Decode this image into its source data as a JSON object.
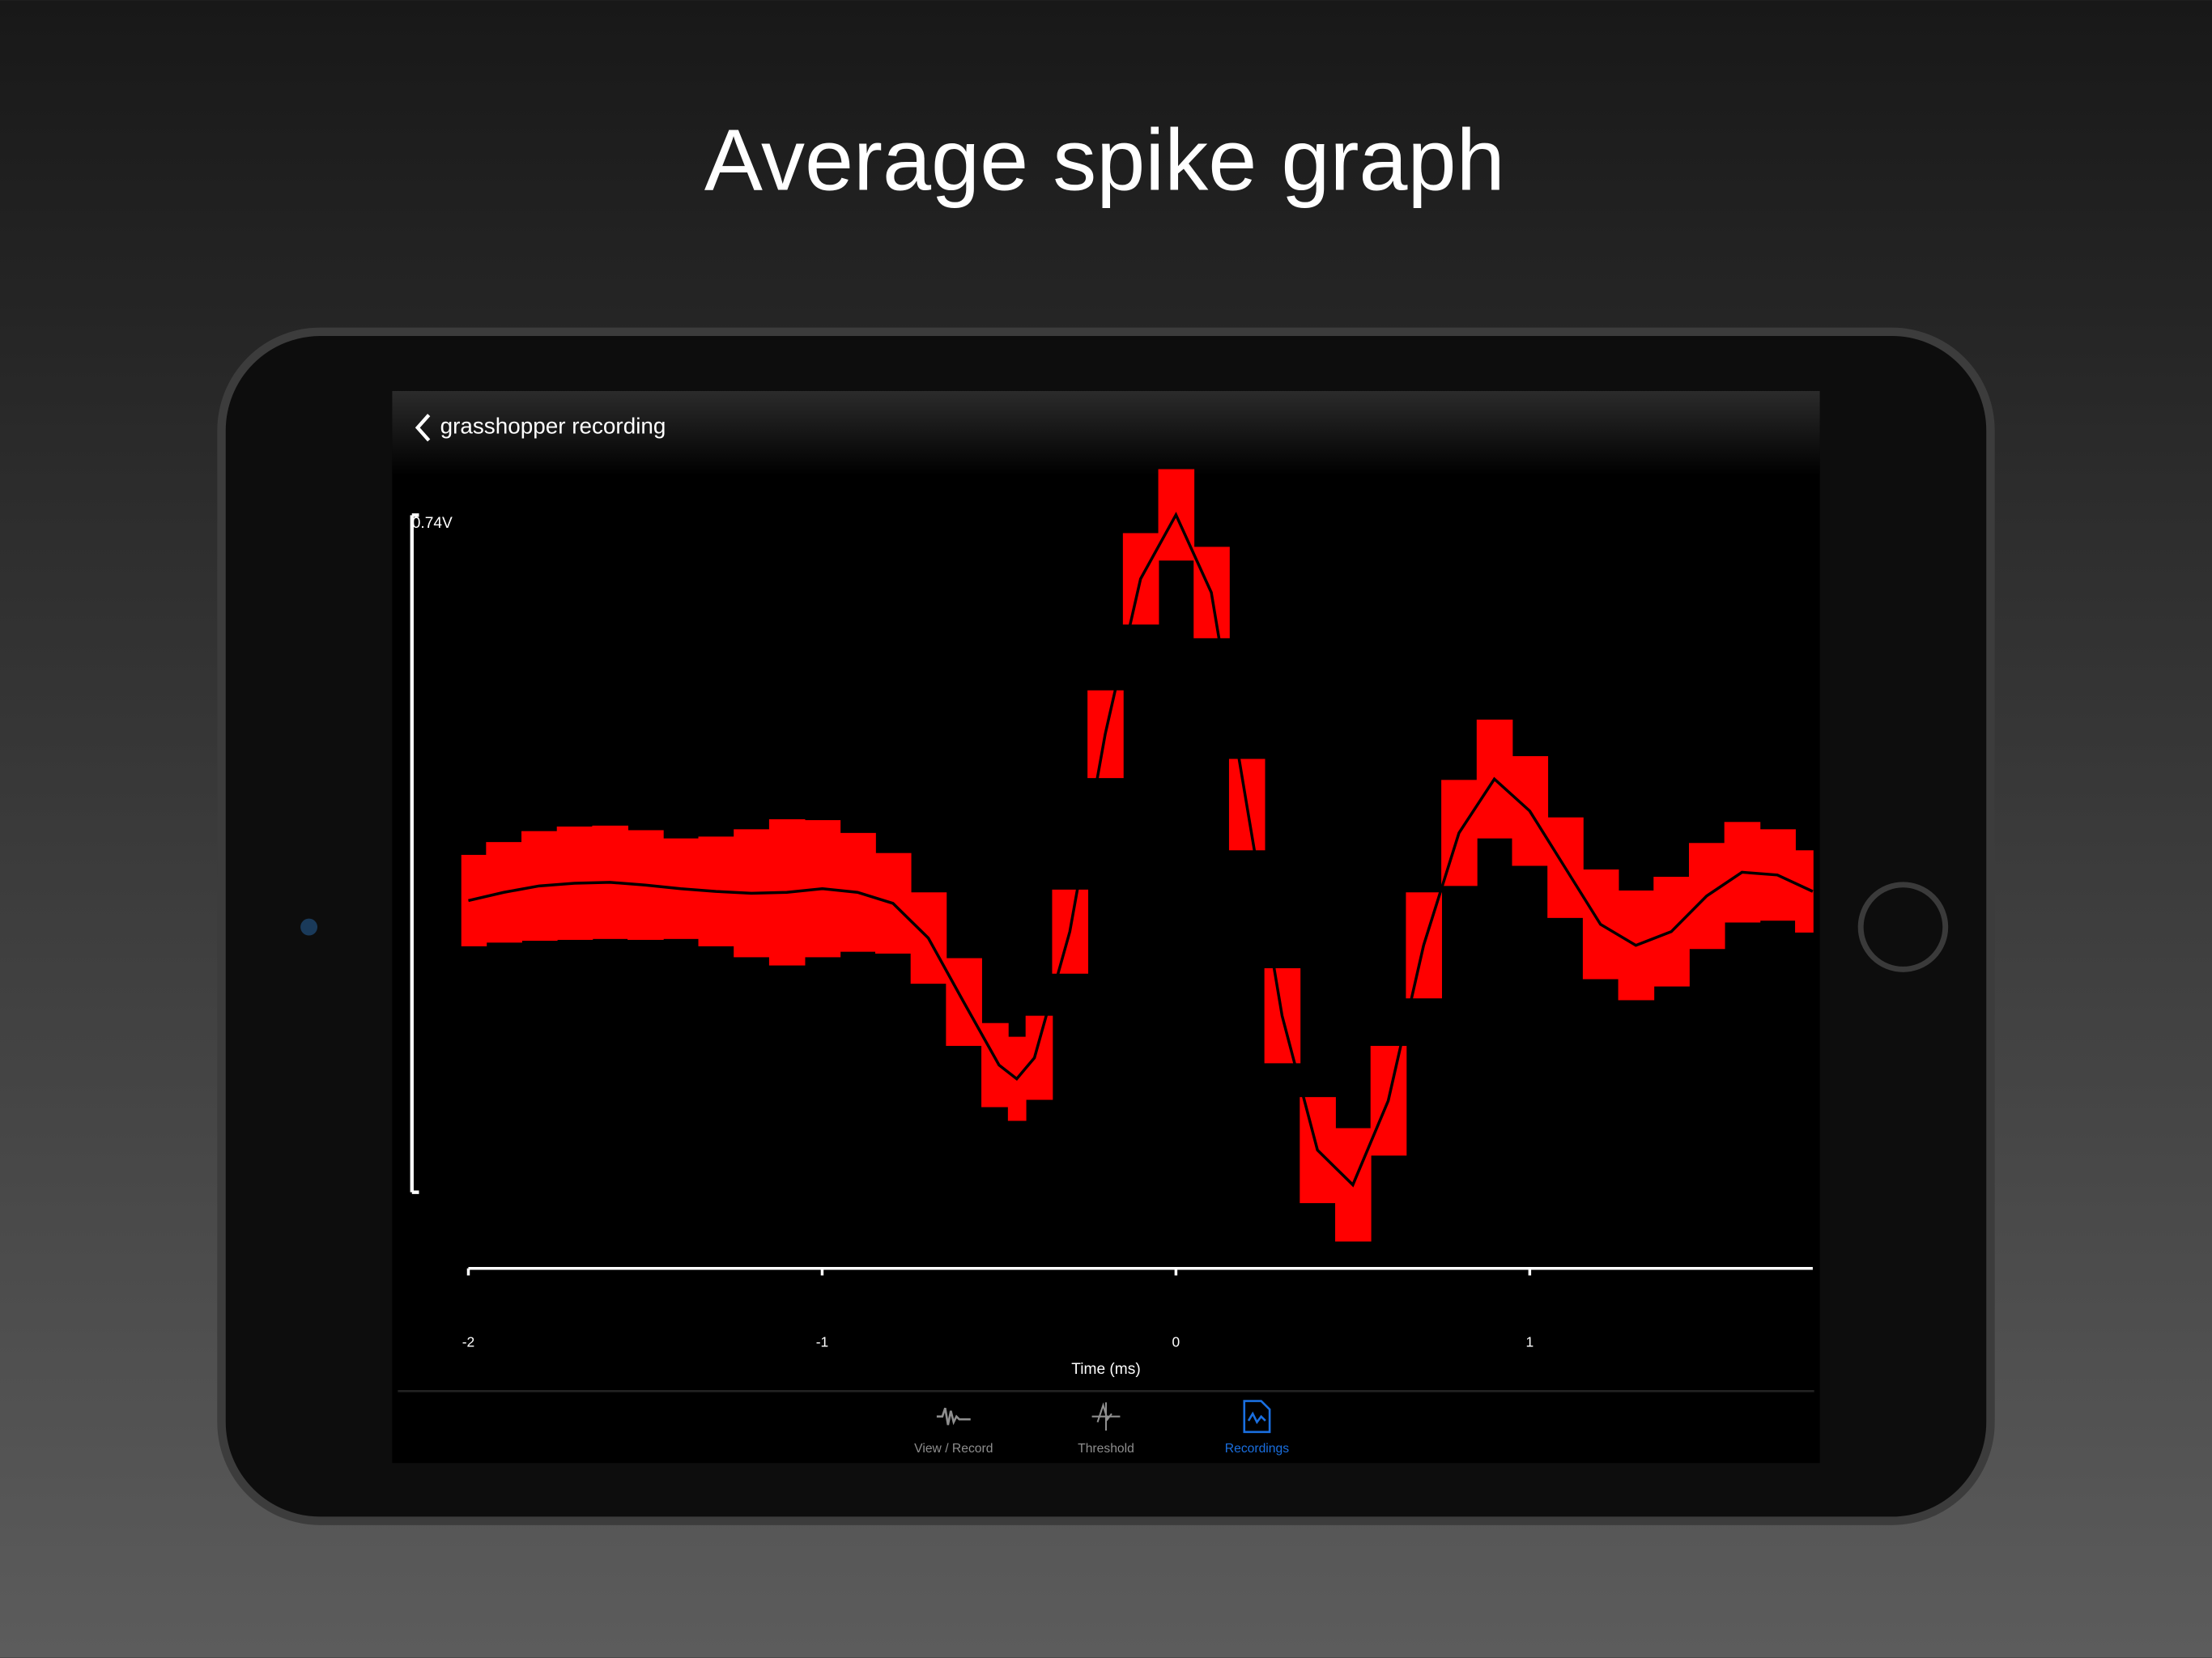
{
  "header": {
    "title": "Average spike graph"
  },
  "nav": {
    "back_label": "grasshopper recording"
  },
  "chart_data": {
    "type": "line",
    "scale_label": "0.74V",
    "x_label": "Time (ms)",
    "x": [
      -2,
      -1.9,
      -1.8,
      -1.7,
      -1.6,
      -1.5,
      -1.4,
      -1.3,
      -1.2,
      -1.1,
      -1.0,
      -0.9,
      -0.8,
      -0.7,
      -0.6,
      -0.5,
      -0.45,
      -0.4,
      -0.3,
      -0.2,
      -0.1,
      0,
      0.1,
      0.2,
      0.3,
      0.4,
      0.5,
      0.6,
      0.7,
      0.8,
      0.9,
      1.0,
      1.1,
      1.2,
      1.3,
      1.4,
      1.5,
      1.6,
      1.7,
      1.8
    ],
    "values": [
      -0.005,
      0.004,
      0.011,
      0.014,
      0.015,
      0.012,
      0.008,
      0.005,
      0.003,
      0.004,
      0.008,
      0.004,
      -0.008,
      -0.046,
      -0.116,
      -0.185,
      -0.2,
      -0.177,
      -0.039,
      0.177,
      0.347,
      0.417,
      0.332,
      0.1,
      -0.131,
      -0.278,
      -0.316,
      -0.224,
      -0.054,
      0.069,
      0.128,
      0.093,
      0.031,
      -0.031,
      -0.054,
      -0.039,
      0.0,
      0.026,
      0.023,
      0.005
    ],
    "errors": [
      0.05,
      0.055,
      0.06,
      0.062,
      0.062,
      0.06,
      0.055,
      0.06,
      0.07,
      0.08,
      0.075,
      0.065,
      0.055,
      0.05,
      0.048,
      0.046,
      0.046,
      0.046,
      0.046,
      0.048,
      0.05,
      0.05,
      0.05,
      0.05,
      0.052,
      0.058,
      0.062,
      0.06,
      0.058,
      0.058,
      0.065,
      0.06,
      0.055,
      0.06,
      0.06,
      0.06,
      0.058,
      0.055,
      0.05,
      0.045
    ],
    "xlim": [
      -2.02,
      1.8
    ],
    "ylim": [
      -0.45,
      0.5
    ],
    "xticks": [
      -2,
      -1,
      0,
      1
    ],
    "color": "#ff0000",
    "line_color": "#000000"
  },
  "tabs": [
    {
      "label": "View / Record"
    },
    {
      "label": "Threshold"
    },
    {
      "label": "Recordings"
    }
  ],
  "active_tab": 2
}
